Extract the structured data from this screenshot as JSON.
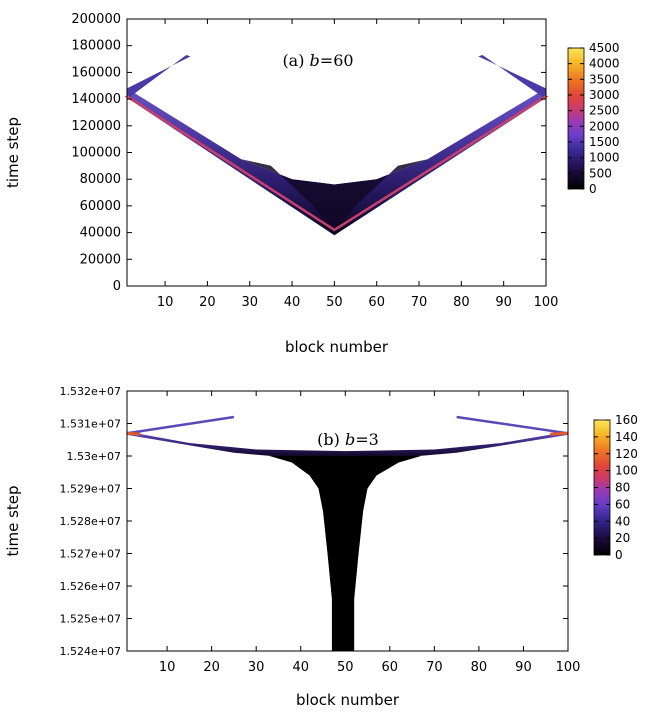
{
  "chart_data": [
    {
      "type": "heatmap",
      "panel": "a",
      "annotation_prefix": "(a) ",
      "annotation_var": "b",
      "annotation_suffix": "=60",
      "xlabel": "block number",
      "ylabel": "time step",
      "xlim": [
        1,
        100
      ],
      "ylim": [
        0,
        200000
      ],
      "xticks": [
        "10",
        "20",
        "30",
        "40",
        "50",
        "60",
        "70",
        "80",
        "90",
        "100"
      ],
      "xtick_values": [
        10,
        20,
        30,
        40,
        50,
        60,
        70,
        80,
        90,
        100
      ],
      "yticks": [
        "0",
        "20000",
        "40000",
        "60000",
        "80000",
        "100000",
        "120000",
        "140000",
        "160000",
        "180000",
        "200000"
      ],
      "ytick_values": [
        0,
        20000,
        40000,
        60000,
        80000,
        100000,
        120000,
        140000,
        160000,
        180000,
        200000
      ],
      "colorbar": {
        "min": 0,
        "max": 4500,
        "ticks": [
          "0",
          "500",
          "1000",
          "1500",
          "2000",
          "2500",
          "3000",
          "3500",
          "4000",
          "4500"
        ],
        "tick_values": [
          0,
          500,
          1000,
          1500,
          2000,
          2500,
          3000,
          3500,
          4000,
          4500
        ]
      },
      "features": {
        "v_lower_edge": [
          [
            1,
            141000
          ],
          [
            50,
            38000
          ],
          [
            100,
            141000
          ]
        ],
        "v_upper_edge": [
          [
            1,
            148000
          ],
          [
            28,
            95000
          ],
          [
            40,
            80000
          ],
          [
            50,
            76000
          ],
          [
            60,
            80000
          ],
          [
            72,
            95000
          ],
          [
            100,
            148000
          ]
        ],
        "v_ridge": [
          [
            1,
            142000
          ],
          [
            50,
            42000
          ],
          [
            100,
            142000
          ]
        ],
        "left_arm": [
          [
            1,
            142000
          ],
          [
            15,
            172000
          ]
        ],
        "right_arm": [
          [
            85,
            172000
          ],
          [
            100,
            142000
          ]
        ]
      }
    },
    {
      "type": "heatmap",
      "panel": "b",
      "annotation_prefix": "(b) ",
      "annotation_var": "b",
      "annotation_suffix": "=3",
      "xlabel": "block number",
      "ylabel": "time step",
      "xlim": [
        1,
        100
      ],
      "ylim": [
        15240000,
        15320000
      ],
      "xticks": [
        "10",
        "20",
        "30",
        "40",
        "50",
        "60",
        "70",
        "80",
        "90",
        "100"
      ],
      "xtick_values": [
        10,
        20,
        30,
        40,
        50,
        60,
        70,
        80,
        90,
        100
      ],
      "yticks": [
        "1.524e+07",
        "1.525e+07",
        "1.526e+07",
        "1.527e+07",
        "1.528e+07",
        "1.529e+07",
        "1.53e+07",
        "1.531e+07",
        "1.532e+07"
      ],
      "ytick_values": [
        15240000,
        15250000,
        15260000,
        15270000,
        15280000,
        15290000,
        15300000,
        15310000,
        15320000
      ],
      "colorbar": {
        "min": 0,
        "max": 160,
        "ticks": [
          "0",
          "20",
          "40",
          "60",
          "80",
          "100",
          "120",
          "140",
          "160"
        ],
        "tick_values": [
          0,
          20,
          40,
          60,
          80,
          100,
          120,
          140,
          160
        ]
      },
      "features": {
        "saturation_edge": [
          [
            1,
            15307000
          ],
          [
            25,
            15302000
          ],
          [
            50,
            15301000
          ],
          [
            75,
            15302000
          ],
          [
            100,
            15307000
          ]
        ],
        "black_trunk": [
          [
            43,
            15240000
          ],
          [
            57,
            15300000
          ]
        ],
        "left_arm": [
          [
            1,
            15307000
          ],
          [
            25,
            15312000
          ]
        ],
        "right_arm": [
          [
            75,
            15312000
          ],
          [
            100,
            15307000
          ]
        ]
      }
    }
  ]
}
